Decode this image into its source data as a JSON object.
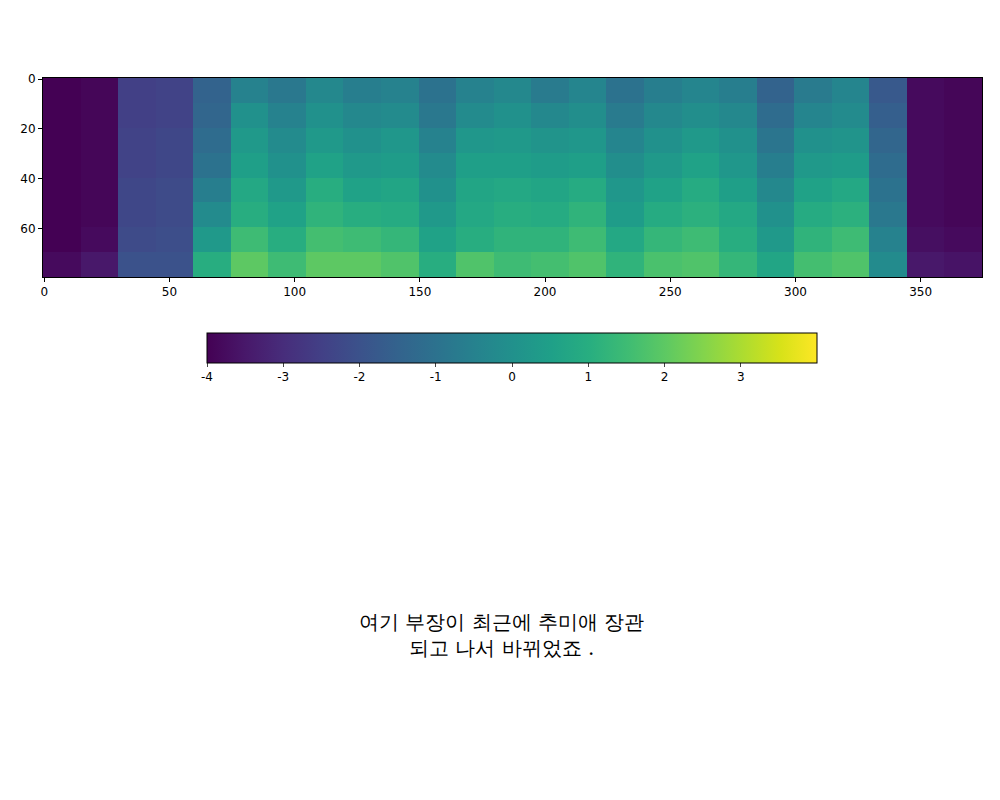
{
  "chart_data": {
    "type": "heatmap",
    "caption_lines": [
      "여기 부장이 최근에 추미애 장관",
      "되고 나서 바뀌었죠 ."
    ],
    "x": [
      7,
      22,
      37,
      52,
      67,
      82,
      97,
      112,
      127,
      142,
      157,
      172,
      187,
      202,
      217,
      232,
      247,
      262,
      277,
      292,
      307,
      322,
      337,
      352,
      367
    ],
    "y": [
      4.5,
      14.5,
      24.5,
      34.5,
      44.5,
      54.5,
      64.5,
      74.5
    ],
    "cells": [
      [
        -4,
        -3.9,
        -2.5,
        -2.4,
        -1.5,
        -0.5,
        -0.8,
        -0.3,
        -0.6,
        -0.5,
        -1,
        -0.5,
        -0.3,
        -0.7,
        -0.4,
        -1.0,
        -0.6,
        -0.4,
        -0.6,
        -1.5,
        -0.7,
        -0.4,
        -1.8,
        -3.8,
        -3.9
      ],
      [
        -4,
        -3.9,
        -2.5,
        -2.4,
        -1.4,
        0,
        -0.5,
        0,
        -0.3,
        -0.2,
        -0.8,
        -0.2,
        0,
        -0.3,
        -0.1,
        -0.7,
        -0.3,
        -0.1,
        -0.3,
        -1.2,
        -0.4,
        -0.2,
        -1.6,
        -3.8,
        -3.9
      ],
      [
        -4,
        -3.9,
        -2.4,
        -2.3,
        -1.2,
        0.3,
        -0.2,
        0.3,
        0,
        0.2,
        -0.5,
        0.2,
        0.3,
        0.1,
        0.2,
        -0.4,
        0,
        0.3,
        0,
        -0.9,
        0,
        0.1,
        -1.4,
        -3.8,
        -3.9
      ],
      [
        -4,
        -3.9,
        -2.4,
        -2.3,
        -1.0,
        0.5,
        0,
        0.6,
        0.3,
        0.4,
        -0.2,
        0.5,
        0.5,
        0.4,
        0.5,
        -0.1,
        0.3,
        0.6,
        0.2,
        -0.6,
        0.3,
        0.4,
        -1.2,
        -3.8,
        -3.9
      ],
      [
        -4,
        -3.9,
        -2.3,
        -2.2,
        -0.6,
        0.8,
        0.3,
        1,
        0.6,
        0.7,
        0,
        0.7,
        0.8,
        0.7,
        0.9,
        0.2,
        0.6,
        0.9,
        0.5,
        -0.3,
        0.6,
        0.8,
        -1.0,
        -3.8,
        -3.9
      ],
      [
        -4,
        -3.9,
        -2.3,
        -2.2,
        -0.2,
        1,
        0.6,
        1.2,
        1,
        0.9,
        0.3,
        0.8,
        1,
        0.9,
        1.2,
        0.4,
        0.9,
        1.1,
        0.8,
        0,
        0.9,
        1.1,
        -0.8,
        -3.8,
        -3.9
      ],
      [
        -4,
        -3.8,
        -2.2,
        -2.1,
        0.3,
        1.5,
        1,
        1.6,
        1.5,
        1.3,
        0.6,
        1,
        1.2,
        1.2,
        1.5,
        0.8,
        1.3,
        1.5,
        1,
        0.3,
        1.2,
        1.5,
        -0.5,
        -3.7,
        -3.8
      ],
      [
        -3.8,
        -3.5,
        -2,
        -2,
        1,
        2,
        1.5,
        2,
        2,
        1.8,
        1,
        1.8,
        1.5,
        1.6,
        1.8,
        1.2,
        1.7,
        1.8,
        1.3,
        0.7,
        1.6,
        1.8,
        -0.2,
        -3.5,
        -3.6
      ]
    ],
    "color": "Viridis",
    "xlim": [
      -0.5,
      374.5
    ],
    "xticks": [
      0,
      50,
      100,
      150,
      200,
      250,
      300,
      350
    ],
    "ylim": [
      79.5,
      -0.5
    ],
    "yticks": [
      0,
      20,
      40,
      60
    ],
    "colorbar": {
      "range": [
        -4,
        4
      ],
      "ticks": [
        -4,
        -3,
        -2,
        -1,
        0,
        1,
        2,
        3
      ]
    }
  }
}
